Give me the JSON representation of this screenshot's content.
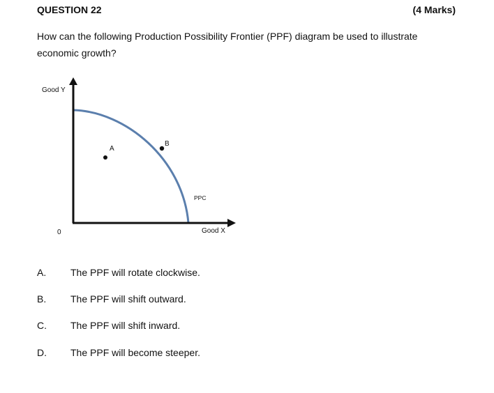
{
  "question": {
    "title": "QUESTION 22",
    "marks": "(4 Marks)",
    "text": "How can the following Production Possibility Frontier (PPF) diagram be used to illustrate economic growth?"
  },
  "diagram": {
    "y_axis_label": "Good Y",
    "x_axis_label": "Good X",
    "origin_label": "0",
    "curve_label": "PPC",
    "point_a_label": "A",
    "point_b_label": "B",
    "colors": {
      "curve": "#5b7fad",
      "axes": "#111111",
      "points": "#111111"
    }
  },
  "options": [
    {
      "letter": "A.",
      "text": "The PPF will rotate clockwise."
    },
    {
      "letter": "B.",
      "text": "The PPF will shift outward."
    },
    {
      "letter": "C.",
      "text": "The PPF will shift inward."
    },
    {
      "letter": "D.",
      "text": "The PPF will become steeper."
    }
  ]
}
